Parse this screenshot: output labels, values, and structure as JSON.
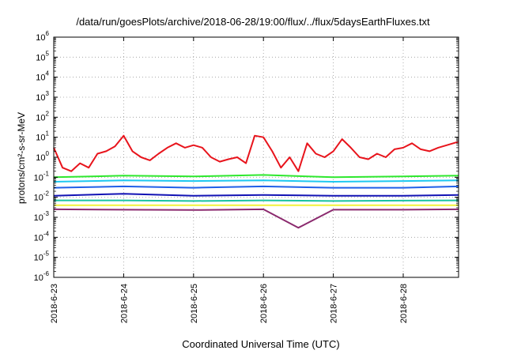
{
  "chart_data": {
    "type": "line",
    "title": "/data/run/goesPlots/archive/2018-06-28/19:00/flux/../flux/5daysEarthFluxes.txt",
    "xlabel": "Coordinated Universal Time (UTC)",
    "ylabel": "protons/cm²-s-sr-MeV",
    "y_scale": "log",
    "ylim": [
      1e-06,
      1000000.0
    ],
    "y_tick_exponents": [
      -6,
      -5,
      -4,
      -3,
      -2,
      -1,
      0,
      1,
      2,
      3,
      4,
      5,
      6
    ],
    "y_tick_base": "10",
    "x_range_days": [
      "2018-6-23",
      "2018-6-28 (end ~19:00)"
    ],
    "x_tick_labels": [
      "2018-6-23",
      "2018-6-24",
      "2018-6-25",
      "2018-6-26",
      "2018-6-27",
      "2018-6-28"
    ],
    "grid": true,
    "series": [
      {
        "color": "#e8141c",
        "x": [
          "2018-6-23 00:00",
          "2018-6-23 03:00",
          "2018-6-23 06:00",
          "2018-6-23 09:00",
          "2018-6-23 12:00",
          "2018-6-23 15:00",
          "2018-6-23 18:00",
          "2018-6-23 21:00",
          "2018-6-24 00:00",
          "2018-6-24 03:00",
          "2018-6-24 06:00",
          "2018-6-24 09:00",
          "2018-6-24 12:00",
          "2018-6-24 15:00",
          "2018-6-24 18:00",
          "2018-6-24 21:00",
          "2018-6-25 00:00",
          "2018-6-25 03:00",
          "2018-6-25 06:00",
          "2018-6-25 09:00",
          "2018-6-25 12:00",
          "2018-6-25 15:00",
          "2018-6-25 18:00",
          "2018-6-25 21:00",
          "2018-6-26 00:00",
          "2018-6-26 03:00",
          "2018-6-26 06:00",
          "2018-6-26 09:00",
          "2018-6-26 12:00",
          "2018-6-26 15:00",
          "2018-6-26 18:00",
          "2018-6-26 21:00",
          "2018-6-27 00:00",
          "2018-6-27 03:00",
          "2018-6-27 06:00",
          "2018-6-27 09:00",
          "2018-6-27 12:00",
          "2018-6-27 15:00",
          "2018-6-27 18:00",
          "2018-6-27 21:00",
          "2018-6-28 00:00",
          "2018-6-28 03:00",
          "2018-6-28 06:00",
          "2018-6-28 09:00",
          "2018-6-28 12:00",
          "2018-6-28 15:00",
          "2018-6-28 19:00"
        ],
        "values": [
          3,
          0.3,
          0.2,
          0.5,
          0.3,
          1.5,
          2,
          3.5,
          12,
          2,
          1,
          0.7,
          1.5,
          3,
          5,
          3,
          4,
          3,
          1,
          0.6,
          0.8,
          1,
          0.5,
          12,
          10,
          2,
          0.3,
          1,
          0.2,
          5,
          1.5,
          1,
          2,
          8,
          3,
          1,
          0.8,
          1.5,
          1,
          2.5,
          3,
          5,
          2.5,
          2,
          3,
          4,
          6
        ]
      },
      {
        "color": "#2ee82e",
        "x": [
          "2018-6-23 00:00",
          "2018-6-24 00:00",
          "2018-6-25 00:00",
          "2018-6-26 00:00",
          "2018-6-27 00:00",
          "2018-6-28 00:00",
          "2018-6-28 19:00"
        ],
        "values": [
          0.1,
          0.12,
          0.11,
          0.13,
          0.1,
          0.11,
          0.12
        ]
      },
      {
        "color": "#1ec8f0",
        "x": [
          "2018-6-23 00:00",
          "2018-6-24 00:00",
          "2018-6-25 00:00",
          "2018-6-26 00:00",
          "2018-6-27 00:00",
          "2018-6-28 00:00",
          "2018-6-28 19:00"
        ],
        "values": [
          0.06,
          0.07,
          0.065,
          0.07,
          0.06,
          0.065,
          0.07
        ]
      },
      {
        "color": "#1f5fe8",
        "x": [
          "2018-6-23 00:00",
          "2018-6-24 00:00",
          "2018-6-25 00:00",
          "2018-6-26 00:00",
          "2018-6-27 00:00",
          "2018-6-28 00:00",
          "2018-6-28 19:00"
        ],
        "values": [
          0.03,
          0.035,
          0.03,
          0.035,
          0.03,
          0.03,
          0.035
        ]
      },
      {
        "color": "#1212b4",
        "x": [
          "2018-6-23 00:00",
          "2018-6-24 00:00",
          "2018-6-25 00:00",
          "2018-6-26 00:00",
          "2018-6-27 00:00",
          "2018-6-28 00:00",
          "2018-6-28 19:00"
        ],
        "values": [
          0.012,
          0.015,
          0.012,
          0.013,
          0.012,
          0.012,
          0.013
        ]
      },
      {
        "color": "#18c2a0",
        "x": [
          "2018-6-23 00:00",
          "2018-6-24 00:00",
          "2018-6-25 00:00",
          "2018-6-26 00:00",
          "2018-6-27 00:00",
          "2018-6-28 00:00",
          "2018-6-28 19:00"
        ],
        "values": [
          0.007,
          0.007,
          0.0065,
          0.007,
          0.0065,
          0.0068,
          0.007
        ]
      },
      {
        "color": "#f2f23a",
        "x": [
          "2018-6-23 00:00",
          "2018-6-24 00:00",
          "2018-6-25 00:00",
          "2018-6-26 00:00",
          "2018-6-27 00:00",
          "2018-6-28 00:00",
          "2018-6-28 19:00"
        ],
        "values": [
          0.004,
          0.004,
          0.004,
          0.004,
          0.004,
          0.004,
          0.004
        ]
      },
      {
        "color": "#8b2a6e",
        "x": [
          "2018-6-23 00:00",
          "2018-6-24 00:00",
          "2018-6-25 00:00",
          "2018-6-26 00:00",
          "2018-6-26 12:00",
          "2018-6-27 00:00",
          "2018-6-28 00:00",
          "2018-6-28 19:00"
        ],
        "values": [
          0.0025,
          0.0024,
          0.0023,
          0.0025,
          0.0003,
          0.0024,
          0.0024,
          0.0025
        ]
      }
    ]
  }
}
